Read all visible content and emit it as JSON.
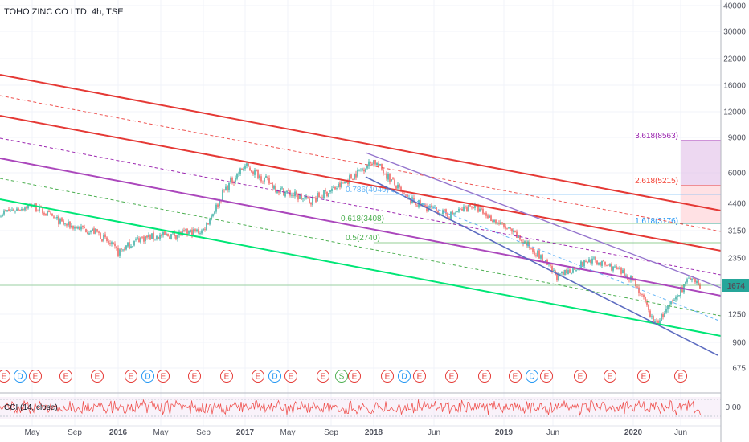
{
  "title": "TOHO ZINC CO LTD, 4h, TSE",
  "price_axis_labels": [
    "40000",
    "30000",
    "22000",
    "16000",
    "12000",
    "9000",
    "6000",
    "4400",
    "3150",
    "2350",
    "1674",
    "1250",
    "900",
    "675"
  ],
  "current_price": "1674",
  "cci_label": "CCI (14, close)",
  "cci_axis_label": "0.00",
  "time_axis_labels": [
    "May",
    "Sep",
    "2016",
    "May",
    "Sep",
    "2017",
    "May",
    "Sep",
    "2018",
    "Jun",
    "2019",
    "Jun",
    "2020",
    "Jun"
  ],
  "fib_labels": [
    {
      "text": "3.618(8563)",
      "color": "#9c27b0"
    },
    {
      "text": "2.618(5215)",
      "color": "#f44336"
    },
    {
      "text": "1.618(3176)",
      "color": "#2196f3"
    },
    {
      "text": "0.786(4049)",
      "color": "#64b5f6"
    },
    {
      "text": "0.618(3408)",
      "color": "#4caf50"
    },
    {
      "text": "0.5(2740)",
      "color": "#4caf50"
    }
  ],
  "events": [
    {
      "letter": "E",
      "color": "#e53935"
    },
    {
      "letter": "D",
      "color": "#2196f3"
    },
    {
      "letter": "E",
      "color": "#e53935"
    },
    {
      "letter": "E",
      "color": "#e53935"
    },
    {
      "letter": "E",
      "color": "#e53935"
    },
    {
      "letter": "E",
      "color": "#e53935"
    },
    {
      "letter": "D",
      "color": "#2196f3"
    },
    {
      "letter": "E",
      "color": "#e53935"
    },
    {
      "letter": "E",
      "color": "#e53935"
    },
    {
      "letter": "E",
      "color": "#e53935"
    },
    {
      "letter": "E",
      "color": "#e53935"
    },
    {
      "letter": "D",
      "color": "#2196f3"
    },
    {
      "letter": "E",
      "color": "#e53935"
    },
    {
      "letter": "E",
      "color": "#e53935"
    },
    {
      "letter": "S",
      "color": "#4caf50"
    },
    {
      "letter": "E",
      "color": "#e53935"
    },
    {
      "letter": "E",
      "color": "#e53935"
    },
    {
      "letter": "D",
      "color": "#2196f3"
    },
    {
      "letter": "E",
      "color": "#e53935"
    },
    {
      "letter": "E",
      "color": "#e53935"
    },
    {
      "letter": "E",
      "color": "#e53935"
    },
    {
      "letter": "E",
      "color": "#e53935"
    },
    {
      "letter": "D",
      "color": "#2196f3"
    },
    {
      "letter": "E",
      "color": "#e53935"
    },
    {
      "letter": "E",
      "color": "#e53935"
    },
    {
      "letter": "E",
      "color": "#e53935"
    },
    {
      "letter": "E",
      "color": "#e53935"
    },
    {
      "letter": "E",
      "color": "#e53935"
    }
  ],
  "chart_data": {
    "type": "candlestick",
    "title": "TOHO ZINC CO LTD, 4h, TSE",
    "y_scale": "log",
    "x_range": [
      "2015-03",
      "2020-09"
    ],
    "y_range": [
      600,
      40000
    ],
    "last_price": 1674,
    "approx_price_path": [
      {
        "date": "2015-03",
        "price": 3900
      },
      {
        "date": "2015-05",
        "price": 4300
      },
      {
        "date": "2015-08",
        "price": 3400
      },
      {
        "date": "2015-11",
        "price": 3100
      },
      {
        "date": "2016-01",
        "price": 2500
      },
      {
        "date": "2016-03",
        "price": 2900
      },
      {
        "date": "2016-06",
        "price": 3000
      },
      {
        "date": "2016-09",
        "price": 3150
      },
      {
        "date": "2016-11",
        "price": 5000
      },
      {
        "date": "2017-01",
        "price": 6500
      },
      {
        "date": "2017-04",
        "price": 5100
      },
      {
        "date": "2017-07",
        "price": 4500
      },
      {
        "date": "2017-10",
        "price": 5300
      },
      {
        "date": "2018-01",
        "price": 6900
      },
      {
        "date": "2018-04",
        "price": 4600
      },
      {
        "date": "2018-08",
        "price": 3800
      },
      {
        "date": "2018-10",
        "price": 4300
      },
      {
        "date": "2019-01",
        "price": 3300
      },
      {
        "date": "2019-04",
        "price": 2500
      },
      {
        "date": "2019-06",
        "price": 1850
      },
      {
        "date": "2019-09",
        "price": 2300
      },
      {
        "date": "2019-11",
        "price": 2100
      },
      {
        "date": "2020-01",
        "price": 1800
      },
      {
        "date": "2020-03",
        "price": 1110
      },
      {
        "date": "2020-05",
        "price": 1500
      },
      {
        "date": "2020-06",
        "price": 1800
      },
      {
        "date": "2020-07",
        "price": 1674
      }
    ],
    "fib_levels": [
      {
        "ratio": "3.618",
        "price": 8563
      },
      {
        "ratio": "2.618",
        "price": 5215
      },
      {
        "ratio": "1.618",
        "price": 3176
      },
      {
        "ratio": "0.786",
        "price": 4049
      },
      {
        "ratio": "0.618",
        "price": 3408
      },
      {
        "ratio": "0.5",
        "price": 2740
      }
    ],
    "colors": {
      "up": "#26a69a",
      "down": "#ef5350",
      "red_channel": "#e53935",
      "purple_channel": "#ab47bc",
      "green_channel": "#00e676",
      "blue_channel": "#7e57c2",
      "cci": "#ef5350"
    },
    "indicator": {
      "name": "CCI (14, close)",
      "last": "0.00"
    }
  }
}
